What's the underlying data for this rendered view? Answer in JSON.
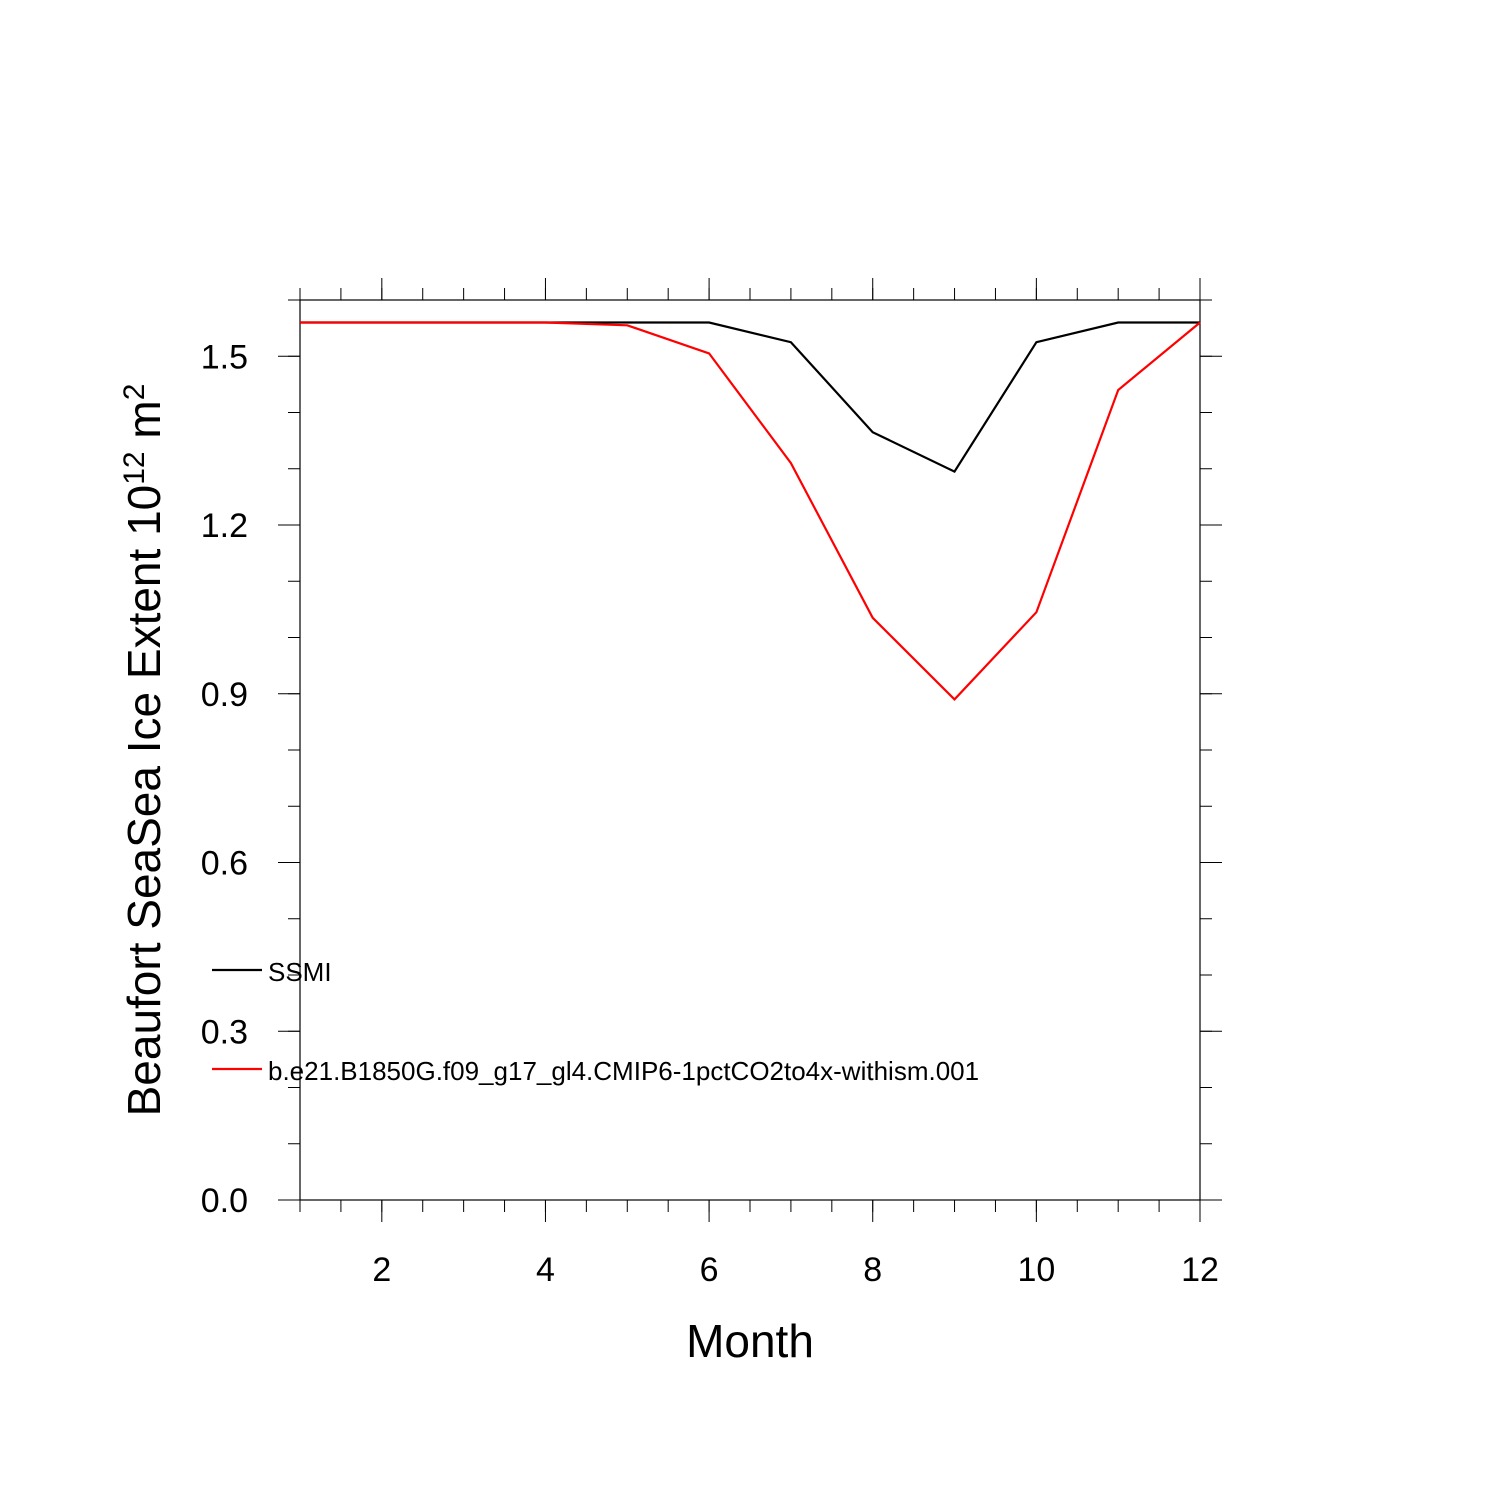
{
  "chart_data": {
    "type": "line",
    "title": "",
    "xlabel": "Month",
    "ylabel_main": "Beaufort SeaSea Ice Extent 10",
    "ylabel_exp": "12",
    "ylabel_unit": " m",
    "ylabel_unit_exp": "2",
    "xlim": [
      1,
      12
    ],
    "ylim": [
      0,
      1.6
    ],
    "x_ticks": [
      2,
      4,
      6,
      8,
      10,
      12
    ],
    "x_tick_labels": [
      "2",
      "4",
      "6",
      "8",
      "10",
      "12"
    ],
    "y_ticks": [
      0.0,
      0.3,
      0.6,
      0.9,
      1.2,
      1.5
    ],
    "y_tick_labels": [
      "0.0",
      "0.3",
      "0.6",
      "0.9",
      "1.2",
      "1.5"
    ],
    "x": [
      1,
      2,
      3,
      4,
      5,
      6,
      7,
      8,
      9,
      10,
      11,
      12
    ],
    "series": [
      {
        "name": "SSMI",
        "color": "#000000",
        "values": [
          1.56,
          1.56,
          1.56,
          1.56,
          1.56,
          1.56,
          1.525,
          1.365,
          1.295,
          1.525,
          1.56,
          1.56
        ]
      },
      {
        "name": "b.e21.B1850G.f09_g17_gl4.CMIP6-1pctCO2to4x-withism.001",
        "color": "#ff0000",
        "values": [
          1.56,
          1.56,
          1.56,
          1.56,
          1.555,
          1.505,
          1.31,
          1.035,
          0.89,
          1.045,
          1.44,
          1.56
        ]
      }
    ],
    "grid": false,
    "legend_position": "lower-left inside"
  }
}
